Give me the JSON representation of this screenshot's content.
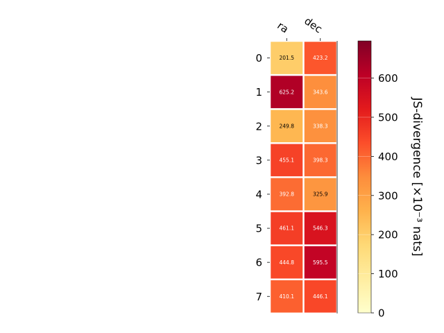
{
  "chart_data": {
    "type": "heatmap",
    "title": "",
    "columns": [
      "ra",
      "dec"
    ],
    "rows": [
      "0",
      "1",
      "2",
      "3",
      "4",
      "5",
      "6",
      "7"
    ],
    "values": [
      [
        201.5,
        423.2
      ],
      [
        625.2,
        343.6
      ],
      [
        249.8,
        338.3
      ],
      [
        455.1,
        398.3
      ],
      [
        392.8,
        325.9
      ],
      [
        461.1,
        546.3
      ],
      [
        444.8,
        595.5
      ],
      [
        410.1,
        446.1
      ]
    ],
    "cell_labels": [
      [
        "201.5",
        "423.2"
      ],
      [
        "625.2",
        "343.6"
      ],
      [
        "249.8",
        "338.3"
      ],
      [
        "455.1",
        "398.3"
      ],
      [
        "392.8",
        "325.9"
      ],
      [
        "461.1",
        "546.3"
      ],
      [
        "444.8",
        "595.5"
      ],
      [
        "410.1",
        "446.1"
      ]
    ],
    "colormap": "YlOrRd",
    "colorbar": {
      "label": "JS-divergence [×10⁻³ nats]",
      "range": [
        0,
        695
      ],
      "ticks": [
        0,
        100,
        200,
        300,
        400,
        500,
        600
      ],
      "tick_labels": [
        "0",
        "100",
        "200",
        "300",
        "400",
        "500",
        "600"
      ]
    }
  }
}
